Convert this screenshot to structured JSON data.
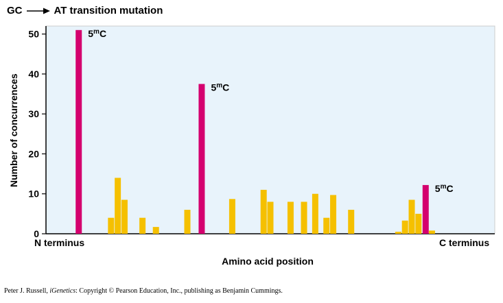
{
  "title": {
    "left": "GC",
    "right": "AT transition mutation"
  },
  "chart_data": {
    "type": "bar",
    "ylabel": "Number of concurrences",
    "xlabel": "Amino acid position",
    "x_endpoints": [
      "N terminus",
      "C terminus"
    ],
    "ylim": [
      0,
      52
    ],
    "yticks": [
      0,
      10,
      20,
      30,
      40,
      50
    ],
    "colors": {
      "hotspot": "#d4006e",
      "other": "#f5c000",
      "background": "#e8f3fb"
    },
    "hotspot_label": {
      "base": "5",
      "sup": "m",
      "letter": "C"
    },
    "xlim": [
      0,
      100
    ],
    "bars": [
      {
        "x": 7.3,
        "value": 51,
        "hotspot": true
      },
      {
        "x": 14.5,
        "value": 4
      },
      {
        "x": 16.0,
        "value": 14
      },
      {
        "x": 17.5,
        "value": 8.5
      },
      {
        "x": 21.5,
        "value": 4
      },
      {
        "x": 24.5,
        "value": 1.7
      },
      {
        "x": 31.5,
        "value": 6
      },
      {
        "x": 34.7,
        "value": 37.5,
        "hotspot": true
      },
      {
        "x": 41.5,
        "value": 8.7
      },
      {
        "x": 48.5,
        "value": 11
      },
      {
        "x": 50.0,
        "value": 8
      },
      {
        "x": 54.5,
        "value": 8
      },
      {
        "x": 57.5,
        "value": 8
      },
      {
        "x": 60.0,
        "value": 10
      },
      {
        "x": 62.5,
        "value": 4
      },
      {
        "x": 64.0,
        "value": 9.7
      },
      {
        "x": 68.0,
        "value": 6
      },
      {
        "x": 78.5,
        "value": 0.5
      },
      {
        "x": 80.0,
        "value": 3.3
      },
      {
        "x": 81.5,
        "value": 8.5
      },
      {
        "x": 83.0,
        "value": 5
      },
      {
        "x": 84.6,
        "value": 12.2,
        "hotspot": true
      },
      {
        "x": 86.0,
        "value": 0.8
      }
    ]
  },
  "credit": {
    "before": "Peter J. Russell, ",
    "italic": "iGenetics",
    "after": ": Copyright © Pearson Education, Inc., publishing as Benjamin Cummings."
  }
}
